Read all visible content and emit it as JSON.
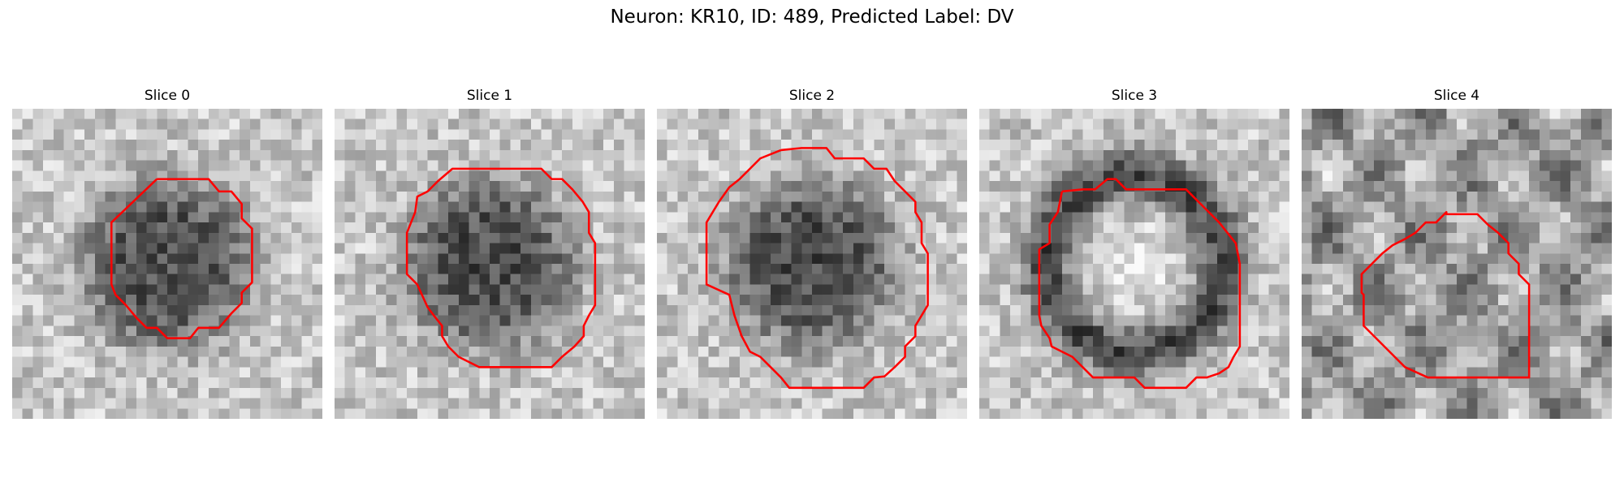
{
  "title": "Neuron: KR10, ID: 489, Predicted Label: DV",
  "colors": {
    "contour": "#ff0000",
    "background": "#ffffff"
  },
  "colormap": "gray",
  "panels": [
    {
      "label": "Slice 0",
      "pattern": "dark-blob"
    },
    {
      "label": "Slice 1",
      "pattern": "dark-blob"
    },
    {
      "label": "Slice 2",
      "pattern": "dark-blob"
    },
    {
      "label": "Slice 3",
      "pattern": "dark-ring-bright-center"
    },
    {
      "label": "Slice 4",
      "pattern": "mottled"
    }
  ]
}
